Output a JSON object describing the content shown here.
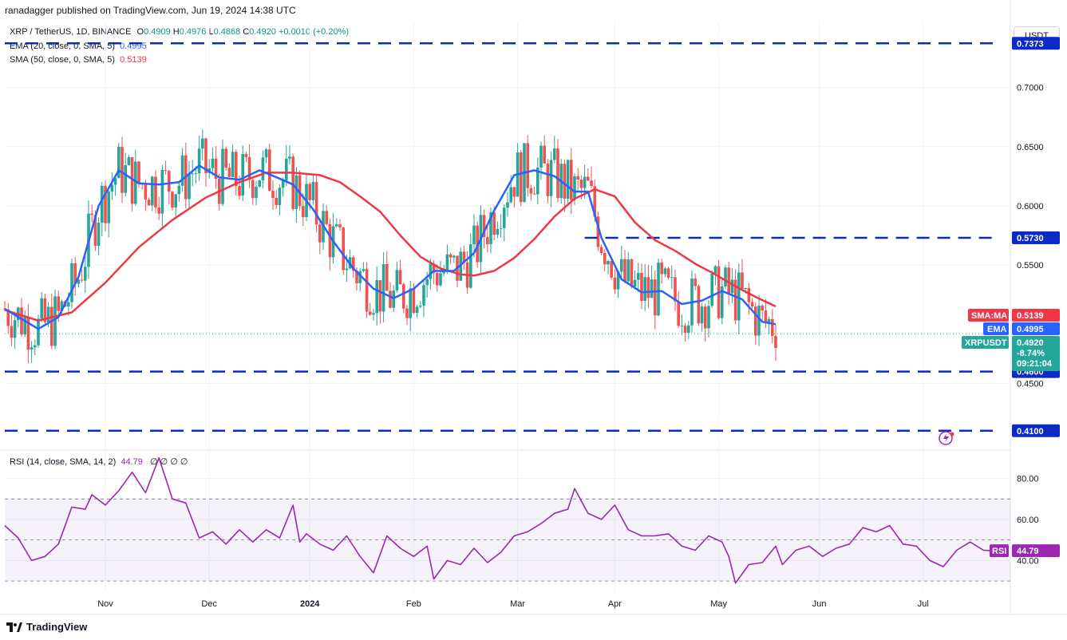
{
  "header": {
    "text": "ranadagger published on TradingView.com, Jun 19, 2024 14:38 UTC"
  },
  "legend": {
    "symbol": "XRP / TetherUS, 1D, BINANCE",
    "o_label": "O",
    "o": "0.4909",
    "h_label": "H",
    "h": "0.4976",
    "l_label": "L",
    "l": "0.4868",
    "c_label": "C",
    "c": "0.4920",
    "change": "+0.0010 (+0.20%)",
    "ema_label": "EMA (20, close, 0, SMA, 5)",
    "ema_value": "0.4995",
    "sma_label": "SMA (50, close, 0, SMA, 5)",
    "sma_value": "0.5139",
    "rsi_label": "RSI (14, close, SMA, 14, 2)",
    "rsi_value": "44.79",
    "rsi_extra": "∅ ∅ ∅ ∅"
  },
  "currency_button": "USDT",
  "footer": {
    "brand": "TradingView",
    "logo_icon": "tradingview-logo-icon"
  },
  "colors": {
    "up": "#26a69a",
    "down": "#ef5350",
    "ema": "#2962ff",
    "sma": "#f23645",
    "rsi": "#9c27b0",
    "level": "#0d2bc4"
  },
  "chart_data": [
    {
      "type": "candlestick",
      "title": "XRP / TetherUS, 1D, BINANCE",
      "ylim": [
        0.395,
        0.755
      ],
      "price_ticks": [
        "0.7000",
        "0.6500",
        "0.6000",
        "0.5500",
        "0.4500"
      ],
      "months": [
        "Nov",
        "Dec",
        "2024",
        "Feb",
        "Mar",
        "Apr",
        "May",
        "Jun",
        "Jul"
      ],
      "levels": [
        {
          "value": 0.7373,
          "label": "0.7373"
        },
        {
          "value": 0.573,
          "label": "0.5730"
        },
        {
          "value": 0.46,
          "label": "0.4600"
        },
        {
          "value": 0.41,
          "label": "0.4100"
        }
      ],
      "series": [
        {
          "name": "SMA:MA",
          "label": "SMA:MA",
          "value_label": "0.5139",
          "points": [
            [
              0,
              0.512
            ],
            [
              10,
              0.503
            ],
            [
              20,
              0.51
            ],
            [
              30,
              0.535
            ],
            [
              40,
              0.565
            ],
            [
              50,
              0.588
            ],
            [
              60,
              0.607
            ],
            [
              70,
              0.62
            ],
            [
              78,
              0.628
            ],
            [
              86,
              0.628
            ],
            [
              94,
              0.626
            ],
            [
              100,
              0.62
            ],
            [
              106,
              0.608
            ],
            [
              112,
              0.595
            ],
            [
              118,
              0.575
            ],
            [
              124,
              0.557
            ],
            [
              130,
              0.547
            ],
            [
              136,
              0.542
            ],
            [
              140,
              0.541
            ],
            [
              146,
              0.545
            ],
            [
              152,
              0.556
            ],
            [
              158,
              0.572
            ],
            [
              164,
              0.591
            ],
            [
              170,
              0.606
            ],
            [
              176,
              0.614
            ],
            [
              182,
              0.608
            ],
            [
              188,
              0.586
            ],
            [
              194,
              0.571
            ],
            [
              200,
              0.562
            ],
            [
              206,
              0.551
            ],
            [
              212,
              0.542
            ],
            [
              218,
              0.532
            ],
            [
              224,
              0.523
            ],
            [
              230,
              0.515
            ]
          ]
        },
        {
          "name": "EMA",
          "label": "EMA",
          "value_label": "0.4995",
          "points": [
            [
              0,
              0.513
            ],
            [
              10,
              0.496
            ],
            [
              16,
              0.506
            ],
            [
              22,
              0.54
            ],
            [
              28,
              0.6
            ],
            [
              34,
              0.63
            ],
            [
              40,
              0.619
            ],
            [
              46,
              0.618
            ],
            [
              52,
              0.62
            ],
            [
              58,
              0.634
            ],
            [
              64,
              0.624
            ],
            [
              70,
              0.622
            ],
            [
              76,
              0.63
            ],
            [
              82,
              0.623
            ],
            [
              86,
              0.618
            ],
            [
              92,
              0.597
            ],
            [
              98,
              0.57
            ],
            [
              104,
              0.547
            ],
            [
              110,
              0.53
            ],
            [
              116,
              0.522
            ],
            [
              122,
              0.53
            ],
            [
              128,
              0.545
            ],
            [
              134,
              0.545
            ],
            [
              140,
              0.56
            ],
            [
              146,
              0.596
            ],
            [
              152,
              0.626
            ],
            [
              158,
              0.63
            ],
            [
              164,
              0.625
            ],
            [
              170,
              0.612
            ],
            [
              174,
              0.612
            ],
            [
              178,
              0.573
            ],
            [
              184,
              0.538
            ],
            [
              190,
              0.527
            ],
            [
              196,
              0.528
            ],
            [
              202,
              0.517
            ],
            [
              208,
              0.52
            ],
            [
              214,
              0.528
            ],
            [
              220,
              0.521
            ],
            [
              226,
              0.502
            ],
            [
              230,
              0.5
            ]
          ]
        }
      ],
      "last_price": {
        "symbol": "XRPUSDT",
        "price": "0.4920",
        "change": "-8.74%",
        "countdown": "09:21:04",
        "value": 0.492
      }
    },
    {
      "type": "line",
      "title": "RSI (14, close, SMA, 14, 2)",
      "ylim": [
        25,
        93
      ],
      "y_ticks": [
        "80.00",
        "60.00",
        "40.00"
      ],
      "band": [
        30,
        70
      ],
      "midline": 50,
      "series": [
        {
          "name": "RSI",
          "value_label": "44.79",
          "points": [
            [
              0,
              57
            ],
            [
              4,
              51
            ],
            [
              8,
              40
            ],
            [
              12,
              42
            ],
            [
              16,
              48
            ],
            [
              20,
              66
            ],
            [
              24,
              65
            ],
            [
              26,
              72
            ],
            [
              30,
              67
            ],
            [
              34,
              74
            ],
            [
              38,
              83
            ],
            [
              42,
              73
            ],
            [
              46,
              90
            ],
            [
              50,
              70
            ],
            [
              54,
              68
            ],
            [
              58,
              51
            ],
            [
              62,
              54
            ],
            [
              66,
              48
            ],
            [
              70,
              55
            ],
            [
              74,
              49
            ],
            [
              78,
              55
            ],
            [
              82,
              51
            ],
            [
              86,
              67
            ],
            [
              88,
              49
            ],
            [
              90,
              53
            ],
            [
              94,
              48
            ],
            [
              98,
              45
            ],
            [
              102,
              52
            ],
            [
              106,
              42
            ],
            [
              110,
              34
            ],
            [
              114,
              52
            ],
            [
              118,
              46
            ],
            [
              122,
              42
            ],
            [
              126,
              47
            ],
            [
              128,
              31
            ],
            [
              132,
              40
            ],
            [
              136,
              38
            ],
            [
              140,
              46
            ],
            [
              144,
              39
            ],
            [
              148,
              44
            ],
            [
              152,
              52
            ],
            [
              156,
              54
            ],
            [
              160,
              58
            ],
            [
              164,
              63
            ],
            [
              168,
              65
            ],
            [
              170,
              75
            ],
            [
              174,
              63
            ],
            [
              178,
              60
            ],
            [
              182,
              67
            ],
            [
              186,
              55
            ],
            [
              190,
              52
            ],
            [
              194,
              52
            ],
            [
              198,
              53
            ],
            [
              202,
              47
            ],
            [
              206,
              45
            ],
            [
              210,
              52
            ],
            [
              214,
              49
            ],
            [
              216,
              42
            ],
            [
              218,
              29
            ],
            [
              222,
              38
            ],
            [
              226,
              39
            ],
            [
              230,
              47
            ],
            [
              232,
              38
            ],
            [
              236,
              45
            ],
            [
              240,
              47
            ],
            [
              244,
              42
            ],
            [
              248,
              46
            ],
            [
              252,
              48
            ],
            [
              256,
              56
            ],
            [
              260,
              54
            ],
            [
              264,
              57
            ],
            [
              268,
              48
            ],
            [
              272,
              47
            ],
            [
              276,
              40
            ],
            [
              280,
              37
            ],
            [
              284,
              45
            ],
            [
              288,
              49
            ],
            [
              292,
              45
            ],
            [
              294,
              44.79
            ]
          ]
        }
      ]
    }
  ]
}
